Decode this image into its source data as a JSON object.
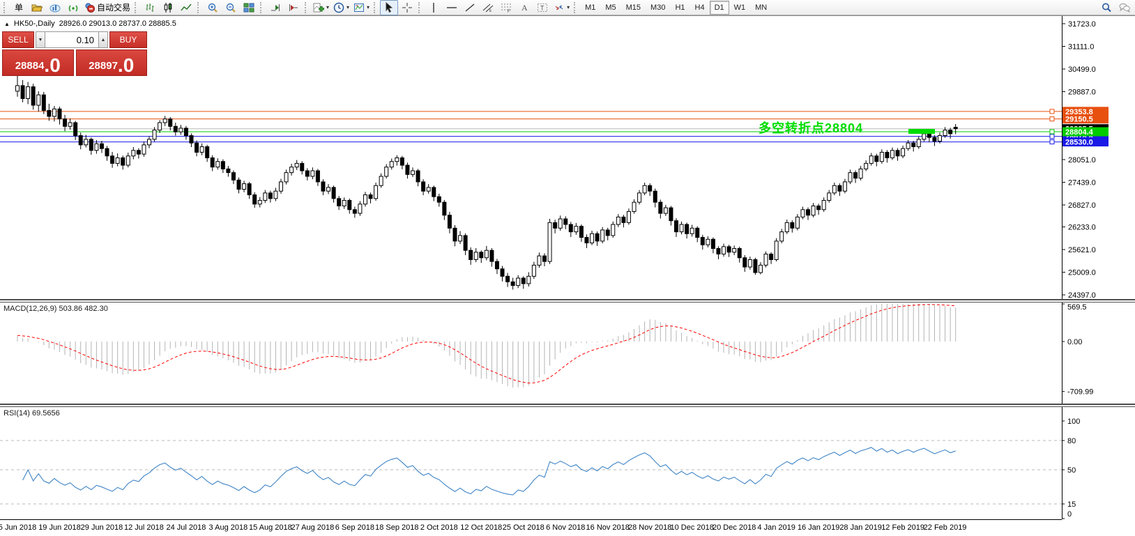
{
  "toolbar": {
    "new_order_label": "单",
    "auto_trading_label": "自动交易",
    "groups": [
      {
        "items": [
          {
            "name": "new-order",
            "label": "单"
          },
          {
            "name": "profiles"
          },
          {
            "name": "charts-cloud"
          },
          {
            "name": "signals"
          },
          {
            "name": "auto-trading",
            "label": "自动交易"
          }
        ]
      },
      {
        "items": [
          {
            "name": "bar-chart"
          },
          {
            "name": "candlestick-chart"
          },
          {
            "name": "line-chart"
          }
        ]
      },
      {
        "items": [
          {
            "name": "zoom-in"
          },
          {
            "name": "zoom-out"
          },
          {
            "name": "tile-windows"
          }
        ]
      },
      {
        "items": [
          {
            "name": "auto-scroll"
          },
          {
            "name": "chart-shift"
          }
        ]
      },
      {
        "items": [
          {
            "name": "indicators",
            "dropdown": true
          },
          {
            "name": "periods",
            "dropdown": true
          },
          {
            "name": "templates",
            "dropdown": true
          }
        ]
      },
      {
        "items": [
          {
            "name": "cursor",
            "active": true
          },
          {
            "name": "crosshair"
          }
        ]
      },
      {
        "items": [
          {
            "name": "vertical-line"
          },
          {
            "name": "horizontal-line"
          },
          {
            "name": "trend-line"
          },
          {
            "name": "equidistant-channel"
          },
          {
            "name": "fibonacci"
          },
          {
            "name": "text"
          },
          {
            "name": "text-label"
          },
          {
            "name": "arrows",
            "dropdown": true
          }
        ]
      }
    ],
    "timeframes": [
      "M1",
      "M5",
      "M15",
      "M30",
      "H1",
      "H4",
      "D1",
      "W1",
      "MN"
    ],
    "active_timeframe": "D1",
    "right_icons": [
      "search",
      "chat"
    ]
  },
  "chart_header": {
    "symbol": "HK50-,Daily",
    "ohlc": "28926.0 29013.0 28737.0 28885.5"
  },
  "trade_panel": {
    "sell_label": "SELL",
    "buy_label": "BUY",
    "volume": "0.10",
    "sell_price": "28884",
    "sell_price_frac": ".0",
    "buy_price": "28897",
    "buy_price_frac": ".0"
  },
  "annotation": {
    "text": "多空转折点28804",
    "color": "#00dd00"
  },
  "macd_panel": {
    "label": "MACD(12,26,9) 503.86 482.30",
    "ticks": [
      {
        "v": 569.5,
        "t": "569.5"
      },
      {
        "v": 0,
        "t": "0.00"
      },
      {
        "v": -709.99,
        "t": "-709.99"
      }
    ]
  },
  "rsi_panel": {
    "label": "RSI(14) 69.5656",
    "ticks": [
      {
        "v": 100,
        "t": "100"
      },
      {
        "v": 80,
        "t": "80"
      },
      {
        "v": 50,
        "t": "50"
      },
      {
        "v": 15,
        "t": "15"
      },
      {
        "v": 0,
        "t": "0"
      }
    ],
    "dashed_levels": [
      80,
      50,
      15
    ]
  },
  "chart_data": {
    "type": "candlestick",
    "symbol": "HK50",
    "timeframe": "Daily",
    "title": "HK50-,Daily 28926.0 29013.0 28737.0 28885.5",
    "price_range": [
      24397.0,
      31723.0
    ],
    "price_axis_ticks": [
      31723.0,
      31111.0,
      30499.0,
      29887.0,
      28051.0,
      27439.0,
      26827.0,
      26233.0,
      25621.0,
      25009.0,
      24397.0
    ],
    "x_tick_labels": [
      "5 Jun 2018",
      "19 Jun 2018",
      "29 Jun 2018",
      "12 Jul 2018",
      "24 Jul 2018",
      "3 Aug 2018",
      "15 Aug 2018",
      "27 Aug 2018",
      "6 Sep 2018",
      "18 Sep 2018",
      "2 Oct 2018",
      "12 Oct 2018",
      "25 Oct 2018",
      "6 Nov 2018",
      "16 Nov 2018",
      "28 Nov 2018",
      "10 Dec 2018",
      "20 Dec 2018",
      "4 Jan 2019",
      "16 Jan 2019",
      "28 Jan 2019",
      "12 Feb 2019",
      "22 Feb 2019"
    ],
    "ticks_every_n_candles": 8,
    "levels": [
      {
        "price": 28885.5,
        "label": "28885.5",
        "line_color": "#b8b8b8",
        "box_color": "#000000",
        "anchor": false,
        "role": "current-price"
      },
      {
        "price": 29353.8,
        "label": "29353.8",
        "line_color": "#e8500f",
        "box_color": "#e8500f",
        "anchor": true,
        "role": "resistance"
      },
      {
        "price": 29150.5,
        "label": "29150.5",
        "line_color": "#e8500f",
        "box_color": "#e8500f",
        "anchor": true,
        "role": "resistance"
      },
      {
        "price": 28678.8,
        "label": "28678.8",
        "line_color": "#1a1ae6",
        "box_color": "#1a1ae6",
        "anchor": true,
        "role": "support"
      },
      {
        "price": 28530.0,
        "label": "28530.0",
        "line_color": "#1a1ae6",
        "box_color": "#1a1ae6",
        "anchor": true,
        "role": "support"
      },
      {
        "price": 28804.4,
        "label": "28804.4",
        "line_color": "#00cc00",
        "box_color": "#00cc00",
        "anchor": true,
        "role": "pivot"
      }
    ],
    "green_marker": {
      "price": 28804.4,
      "note": "thick green segment near last candles"
    },
    "indicators": [
      {
        "name": "MACD",
        "params": [
          12,
          26,
          9
        ],
        "display_values": [
          503.86,
          482.3
        ],
        "range": [
          -709.99,
          569.5
        ]
      },
      {
        "name": "RSI",
        "params": [
          14
        ],
        "display_value": 69.5656,
        "range": [
          0,
          100
        ],
        "levels": [
          80,
          50,
          15
        ]
      }
    ],
    "candles_ohlc": [
      [
        29900,
        30330,
        29750,
        30050
      ],
      [
        30050,
        30200,
        29600,
        29700
      ],
      [
        29700,
        30150,
        29550,
        30020
      ],
      [
        30020,
        30100,
        29400,
        29520
      ],
      [
        29520,
        29900,
        29350,
        29800
      ],
      [
        29800,
        29880,
        29280,
        29380
      ],
      [
        29380,
        29560,
        29100,
        29220
      ],
      [
        29220,
        29500,
        29080,
        29420
      ],
      [
        29420,
        29480,
        29000,
        29150
      ],
      [
        29150,
        29260,
        28820,
        28950
      ],
      [
        28950,
        29160,
        28860,
        29050
      ],
      [
        29050,
        29100,
        28580,
        28700
      ],
      [
        28700,
        28780,
        28330,
        28450
      ],
      [
        28450,
        28720,
        28380,
        28600
      ],
      [
        28600,
        28650,
        28180,
        28300
      ],
      [
        28300,
        28580,
        28210,
        28480
      ],
      [
        28480,
        28560,
        28230,
        28350
      ],
      [
        28350,
        28420,
        28020,
        28150
      ],
      [
        28150,
        28260,
        27830,
        27950
      ],
      [
        27950,
        28220,
        27870,
        28100
      ],
      [
        28100,
        28160,
        27780,
        27900
      ],
      [
        27900,
        28240,
        27840,
        28150
      ],
      [
        28150,
        28390,
        28060,
        28300
      ],
      [
        28300,
        28360,
        28080,
        28200
      ],
      [
        28200,
        28540,
        28130,
        28450
      ],
      [
        28450,
        28680,
        28360,
        28600
      ],
      [
        28600,
        28930,
        28540,
        28850
      ],
      [
        28850,
        29120,
        28770,
        29050
      ],
      [
        29050,
        29230,
        28960,
        29150
      ],
      [
        29150,
        29200,
        28840,
        28950
      ],
      [
        28950,
        29050,
        28700,
        28800
      ],
      [
        28800,
        28990,
        28720,
        28900
      ],
      [
        28900,
        28960,
        28590,
        28700
      ],
      [
        28700,
        28760,
        28390,
        28500
      ],
      [
        28500,
        28570,
        28140,
        28250
      ],
      [
        28250,
        28490,
        28170,
        28400
      ],
      [
        28400,
        28450,
        27990,
        28100
      ],
      [
        28100,
        28170,
        27740,
        27850
      ],
      [
        27850,
        28090,
        27780,
        28000
      ],
      [
        28000,
        28060,
        27690,
        27800
      ],
      [
        27800,
        27880,
        27590,
        27700
      ],
      [
        27700,
        27760,
        27390,
        27500
      ],
      [
        27500,
        27570,
        27140,
        27250
      ],
      [
        27250,
        27480,
        27170,
        27400
      ],
      [
        27400,
        27450,
        26990,
        27100
      ],
      [
        27100,
        27170,
        26750,
        26850
      ],
      [
        26850,
        27040,
        26760,
        26950
      ],
      [
        26950,
        27230,
        26880,
        27150
      ],
      [
        27150,
        27210,
        26890,
        27000
      ],
      [
        27000,
        27290,
        26930,
        27200
      ],
      [
        27200,
        27530,
        27130,
        27450
      ],
      [
        27450,
        27780,
        27380,
        27700
      ],
      [
        27700,
        27940,
        27620,
        27850
      ],
      [
        27850,
        28040,
        27770,
        27950
      ],
      [
        27950,
        28010,
        27650,
        27750
      ],
      [
        27750,
        27820,
        27490,
        27600
      ],
      [
        27600,
        27840,
        27520,
        27750
      ],
      [
        27750,
        27800,
        27340,
        27450
      ],
      [
        27450,
        27520,
        27090,
        27200
      ],
      [
        27200,
        27390,
        27120,
        27300
      ],
      [
        27300,
        27350,
        26890,
        27000
      ],
      [
        27000,
        27070,
        26690,
        26800
      ],
      [
        26800,
        27030,
        26720,
        26950
      ],
      [
        26950,
        27000,
        26590,
        26700
      ],
      [
        26700,
        26780,
        26480,
        26600
      ],
      [
        26600,
        26930,
        26530,
        26850
      ],
      [
        26850,
        27180,
        26780,
        27100
      ],
      [
        27100,
        27160,
        26870,
        27000
      ],
      [
        27000,
        27430,
        26940,
        27350
      ],
      [
        27350,
        27680,
        27290,
        27600
      ],
      [
        27600,
        27930,
        27540,
        27850
      ],
      [
        27850,
        28080,
        27780,
        28000
      ],
      [
        28000,
        28170,
        27890,
        28100
      ],
      [
        28100,
        28150,
        27790,
        27900
      ],
      [
        27900,
        27970,
        27540,
        27650
      ],
      [
        27650,
        27840,
        27580,
        27750
      ],
      [
        27750,
        27800,
        27330,
        27450
      ],
      [
        27450,
        27520,
        27090,
        27200
      ],
      [
        27200,
        27390,
        27130,
        27300
      ],
      [
        27300,
        27350,
        26930,
        27050
      ],
      [
        27050,
        27130,
        26780,
        26900
      ],
      [
        26900,
        26960,
        26420,
        26550
      ],
      [
        26550,
        26640,
        26060,
        26200
      ],
      [
        26200,
        26280,
        25710,
        25850
      ],
      [
        25850,
        26120,
        25770,
        26000
      ],
      [
        26000,
        26060,
        25470,
        25600
      ],
      [
        25600,
        25680,
        25210,
        25350
      ],
      [
        25350,
        25660,
        25280,
        25550
      ],
      [
        25550,
        25600,
        25260,
        25400
      ],
      [
        25400,
        25720,
        25330,
        25600
      ],
      [
        25600,
        25660,
        25160,
        25300
      ],
      [
        25300,
        25370,
        24960,
        25100
      ],
      [
        25100,
        25180,
        24760,
        24900
      ],
      [
        24900,
        24990,
        24610,
        24750
      ],
      [
        24750,
        24860,
        24540,
        24650
      ],
      [
        24650,
        24930,
        24580,
        24850
      ],
      [
        24850,
        24900,
        24560,
        24700
      ],
      [
        24700,
        25010,
        24620,
        24900
      ],
      [
        24900,
        25290,
        24830,
        25200
      ],
      [
        25200,
        25540,
        25130,
        25450
      ],
      [
        25450,
        25520,
        25170,
        25300
      ],
      [
        25300,
        26450,
        25230,
        26350
      ],
      [
        26350,
        26430,
        26060,
        26200
      ],
      [
        26200,
        26540,
        26130,
        26450
      ],
      [
        26450,
        26520,
        26170,
        26300
      ],
      [
        26300,
        26370,
        25960,
        26100
      ],
      [
        26100,
        26340,
        26020,
        26250
      ],
      [
        26250,
        26300,
        25830,
        25950
      ],
      [
        25950,
        26030,
        25660,
        25800
      ],
      [
        25800,
        26130,
        25740,
        26050
      ],
      [
        26050,
        26110,
        25720,
        25850
      ],
      [
        25850,
        26230,
        25790,
        26150
      ],
      [
        26150,
        26210,
        25870,
        26000
      ],
      [
        26000,
        26380,
        25940,
        26300
      ],
      [
        26300,
        26580,
        26230,
        26500
      ],
      [
        26500,
        26560,
        26220,
        26350
      ],
      [
        26350,
        26730,
        26290,
        26650
      ],
      [
        26650,
        26980,
        26590,
        26900
      ],
      [
        26900,
        27230,
        26840,
        27150
      ],
      [
        27150,
        27430,
        27090,
        27350
      ],
      [
        27350,
        27410,
        27070,
        27200
      ],
      [
        27200,
        27270,
        26760,
        26900
      ],
      [
        26900,
        26970,
        26460,
        26600
      ],
      [
        26600,
        26830,
        26530,
        26750
      ],
      [
        26750,
        26800,
        26270,
        26400
      ],
      [
        26400,
        26470,
        25960,
        26100
      ],
      [
        26100,
        26380,
        26030,
        26300
      ],
      [
        26300,
        26350,
        25920,
        26050
      ],
      [
        26050,
        26290,
        25970,
        26200
      ],
      [
        26200,
        26250,
        25820,
        25950
      ],
      [
        25950,
        26020,
        25620,
        25750
      ],
      [
        25750,
        25980,
        25680,
        25900
      ],
      [
        25900,
        25950,
        25520,
        25650
      ],
      [
        25650,
        25710,
        25360,
        25500
      ],
      [
        25500,
        25780,
        25430,
        25700
      ],
      [
        25700,
        25750,
        25420,
        25550
      ],
      [
        25550,
        25730,
        25470,
        25650
      ],
      [
        25650,
        25700,
        25270,
        25400
      ],
      [
        25400,
        25470,
        25020,
        25150
      ],
      [
        25150,
        25430,
        25080,
        25350
      ],
      [
        25350,
        25400,
        24940,
        25000
      ],
      [
        25000,
        25280,
        24950,
        25200
      ],
      [
        25200,
        25570,
        25140,
        25500
      ],
      [
        25500,
        25550,
        25230,
        25350
      ],
      [
        25350,
        25930,
        25300,
        25850
      ],
      [
        25850,
        26180,
        25790,
        26100
      ],
      [
        26100,
        26430,
        26040,
        26350
      ],
      [
        26350,
        26410,
        26080,
        26200
      ],
      [
        26200,
        26580,
        26140,
        26500
      ],
      [
        26500,
        26780,
        26440,
        26700
      ],
      [
        26700,
        26760,
        26420,
        26550
      ],
      [
        26550,
        26880,
        26490,
        26800
      ],
      [
        26800,
        26860,
        26560,
        26700
      ],
      [
        26700,
        27030,
        26640,
        26950
      ],
      [
        26950,
        27230,
        26890,
        27150
      ],
      [
        27150,
        27430,
        27090,
        27350
      ],
      [
        27350,
        27410,
        27070,
        27200
      ],
      [
        27200,
        27530,
        27140,
        27450
      ],
      [
        27450,
        27780,
        27390,
        27700
      ],
      [
        27700,
        27760,
        27420,
        27550
      ],
      [
        27550,
        27880,
        27490,
        27800
      ],
      [
        27800,
        28030,
        27740,
        27950
      ],
      [
        27950,
        28230,
        27890,
        28150
      ],
      [
        28150,
        28210,
        27870,
        28000
      ],
      [
        28000,
        28330,
        27940,
        28250
      ],
      [
        28250,
        28310,
        27970,
        28100
      ],
      [
        28100,
        28380,
        28040,
        28300
      ],
      [
        28300,
        28360,
        28020,
        28150
      ],
      [
        28150,
        28430,
        28090,
        28350
      ],
      [
        28350,
        28580,
        28290,
        28500
      ],
      [
        28500,
        28560,
        28270,
        28400
      ],
      [
        28400,
        28680,
        28340,
        28600
      ],
      [
        28600,
        28830,
        28540,
        28750
      ],
      [
        28750,
        28810,
        28520,
        28650
      ],
      [
        28650,
        28710,
        28420,
        28550
      ],
      [
        28550,
        28780,
        28490,
        28700
      ],
      [
        28700,
        28930,
        28640,
        28850
      ],
      [
        28850,
        28910,
        28620,
        28750
      ],
      [
        28926,
        29013,
        28737,
        28885.5
      ]
    ]
  }
}
